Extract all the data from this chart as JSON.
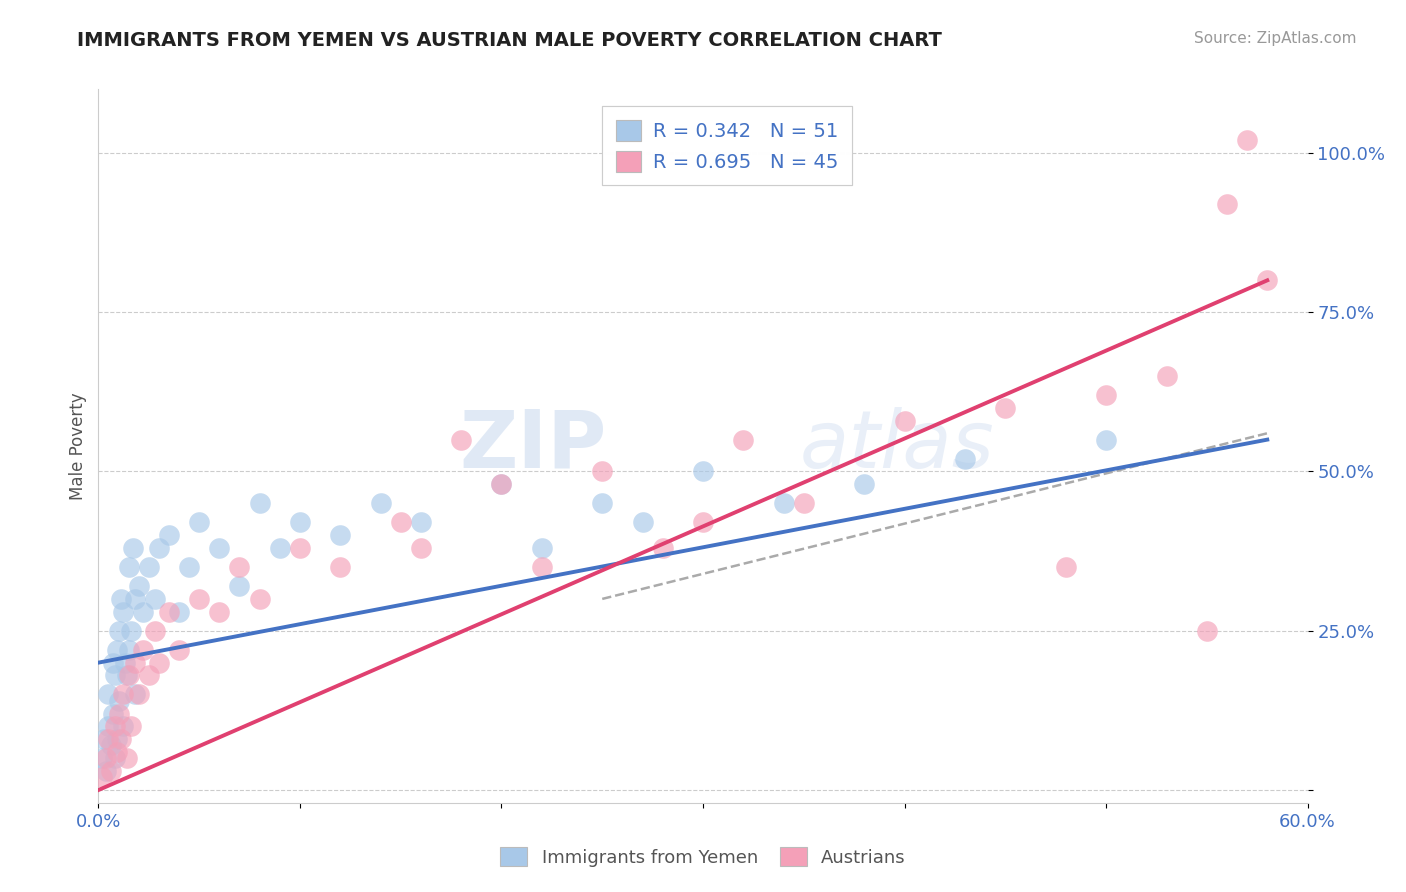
{
  "title": "IMMIGRANTS FROM YEMEN VS AUSTRIAN MALE POVERTY CORRELATION CHART",
  "source": "Source: ZipAtlas.com",
  "ylabel": "Male Poverty",
  "xlim": [
    0.0,
    0.6
  ],
  "ylim": [
    -0.02,
    1.1
  ],
  "xtick_positions": [
    0.0,
    0.1,
    0.2,
    0.3,
    0.4,
    0.5,
    0.6
  ],
  "xticklabels": [
    "0.0%",
    "",
    "",
    "",
    "",
    "",
    "60.0%"
  ],
  "ytick_positions": [
    0.0,
    0.25,
    0.5,
    0.75,
    1.0
  ],
  "ytick_labels": [
    "",
    "25.0%",
    "50.0%",
    "75.0%",
    "100.0%"
  ],
  "R_blue": 0.342,
  "N_blue": 51,
  "R_pink": 0.695,
  "N_pink": 45,
  "blue_color": "#a8c8e8",
  "pink_color": "#f4a0b8",
  "blue_line_color": "#4472c4",
  "pink_line_color": "#e04070",
  "dashed_line_color": "#aaaaaa",
  "legend_text_color": "#4472c4",
  "background_color": "#ffffff",
  "blue_scatter_x": [
    0.002,
    0.003,
    0.004,
    0.005,
    0.005,
    0.006,
    0.007,
    0.007,
    0.008,
    0.008,
    0.009,
    0.009,
    0.01,
    0.01,
    0.011,
    0.012,
    0.012,
    0.013,
    0.014,
    0.015,
    0.015,
    0.016,
    0.017,
    0.018,
    0.018,
    0.02,
    0.022,
    0.025,
    0.028,
    0.03,
    0.035,
    0.04,
    0.045,
    0.05,
    0.06,
    0.07,
    0.08,
    0.09,
    0.1,
    0.12,
    0.14,
    0.16,
    0.2,
    0.22,
    0.25,
    0.27,
    0.3,
    0.34,
    0.38,
    0.43,
    0.5
  ],
  "blue_scatter_y": [
    0.05,
    0.08,
    0.03,
    0.1,
    0.15,
    0.07,
    0.12,
    0.2,
    0.05,
    0.18,
    0.22,
    0.08,
    0.25,
    0.14,
    0.3,
    0.1,
    0.28,
    0.2,
    0.18,
    0.35,
    0.22,
    0.25,
    0.38,
    0.3,
    0.15,
    0.32,
    0.28,
    0.35,
    0.3,
    0.38,
    0.4,
    0.28,
    0.35,
    0.42,
    0.38,
    0.32,
    0.45,
    0.38,
    0.42,
    0.4,
    0.45,
    0.42,
    0.48,
    0.38,
    0.45,
    0.42,
    0.5,
    0.45,
    0.48,
    0.52,
    0.55
  ],
  "pink_scatter_x": [
    0.002,
    0.004,
    0.005,
    0.006,
    0.008,
    0.009,
    0.01,
    0.011,
    0.012,
    0.014,
    0.015,
    0.016,
    0.018,
    0.02,
    0.022,
    0.025,
    0.028,
    0.03,
    0.035,
    0.04,
    0.05,
    0.06,
    0.07,
    0.08,
    0.1,
    0.12,
    0.15,
    0.16,
    0.18,
    0.2,
    0.22,
    0.25,
    0.28,
    0.3,
    0.32,
    0.35,
    0.4,
    0.45,
    0.48,
    0.5,
    0.53,
    0.55,
    0.56,
    0.57,
    0.58
  ],
  "pink_scatter_y": [
    0.02,
    0.05,
    0.08,
    0.03,
    0.1,
    0.06,
    0.12,
    0.08,
    0.15,
    0.05,
    0.18,
    0.1,
    0.2,
    0.15,
    0.22,
    0.18,
    0.25,
    0.2,
    0.28,
    0.22,
    0.3,
    0.28,
    0.35,
    0.3,
    0.38,
    0.35,
    0.42,
    0.38,
    0.55,
    0.48,
    0.35,
    0.5,
    0.38,
    0.42,
    0.55,
    0.45,
    0.58,
    0.6,
    0.35,
    0.62,
    0.65,
    0.25,
    0.92,
    1.02,
    0.8
  ],
  "blue_line_x0": 0.0,
  "blue_line_y0": 0.2,
  "blue_line_x1": 0.58,
  "blue_line_y1": 0.55,
  "pink_line_x0": 0.0,
  "pink_line_y0": 0.0,
  "pink_line_x1": 0.58,
  "pink_line_y1": 0.8,
  "dash_line_x0": 0.25,
  "dash_line_y0": 0.3,
  "dash_line_x1": 0.58,
  "dash_line_y1": 0.56
}
